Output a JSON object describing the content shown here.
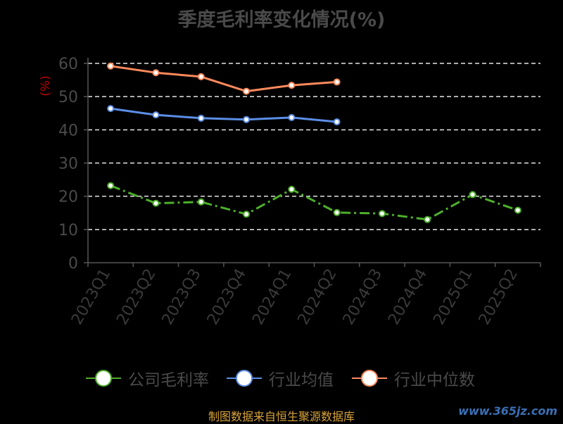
{
  "chart_data": {
    "type": "line",
    "title": "季度毛利率变化情况(%)",
    "ylabel": "(%)",
    "xlabel": "",
    "categories": [
      "2023Q1",
      "2023Q2",
      "2023Q3",
      "2023Q4",
      "2024Q1",
      "2024Q2",
      "2024Q3",
      "2024Q4",
      "2025Q1",
      "2025Q2"
    ],
    "ylim": [
      0,
      60
    ],
    "yticks": [
      0,
      10,
      20,
      30,
      40,
      50,
      60
    ],
    "grid": true,
    "legend_position": "bottom",
    "series": [
      {
        "name": "公司毛利率",
        "color": "#4caf2a",
        "dashed": true,
        "values": [
          23.2,
          17.9,
          18.3,
          14.6,
          22.1,
          15.1,
          14.8,
          13.0,
          20.5,
          15.8
        ]
      },
      {
        "name": "行业均值",
        "color": "#5b8ee6",
        "dashed": false,
        "values": [
          46.4,
          44.5,
          43.5,
          43.1,
          43.7,
          42.4,
          null,
          null,
          null,
          null
        ]
      },
      {
        "name": "行业中位数",
        "color": "#ff8a5c",
        "dashed": false,
        "values": [
          59.2,
          57.2,
          56.0,
          51.6,
          53.4,
          54.4,
          null,
          null,
          null,
          null
        ]
      }
    ]
  },
  "source": "制图数据来自恒生聚源数据库",
  "watermark": "www.365jz.com"
}
